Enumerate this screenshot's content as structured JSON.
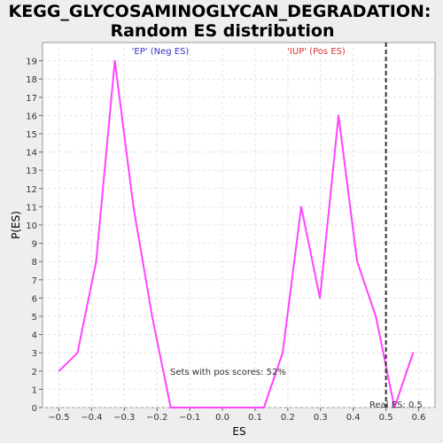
{
  "chart_data": {
    "type": "line",
    "title": [
      "KEGG_GLYCOSAMINOGLYCAN_DEGRADATION:",
      "Random ES distribution"
    ],
    "xlabel": "ES",
    "ylabel": "P(ES)",
    "xlim": [
      -0.55,
      0.65
    ],
    "ylim": [
      0,
      20
    ],
    "xticks": [
      -0.5,
      -0.4,
      -0.3,
      -0.2,
      -0.1,
      0.0,
      0.1,
      0.2,
      0.3,
      0.4,
      0.5,
      0.6
    ],
    "xtick_labels": [
      "−0.5",
      "−0.4",
      "−0.3",
      "−0.2",
      "−0.1",
      "0.0",
      "0.1",
      "0.2",
      "0.3",
      "0.4",
      "0.5",
      "0.6"
    ],
    "yticks": [
      0,
      1,
      2,
      3,
      4,
      5,
      6,
      7,
      8,
      9,
      10,
      11,
      12,
      13,
      14,
      15,
      16,
      17,
      18,
      19
    ],
    "grid": true,
    "series": [
      {
        "color": "#ff44ff",
        "x": [
          -0.5,
          -0.443,
          -0.386,
          -0.329,
          -0.272,
          -0.215,
          -0.158,
          -0.101,
          -0.044,
          0.013,
          0.07,
          0.127,
          0.184,
          0.241,
          0.298,
          0.355,
          0.412,
          0.469,
          0.526,
          0.583
        ],
        "y": [
          2,
          3,
          8,
          19,
          11,
          5,
          0,
          0,
          0,
          0,
          0,
          0,
          3,
          11,
          6,
          16,
          8,
          5,
          0,
          3
        ]
      }
    ],
    "real_es": {
      "x": 0.5,
      "color": "#333333"
    },
    "annotations": {
      "neg": {
        "text": "'EP' (Neg ES)",
        "color": "#3333cc"
      },
      "pos": {
        "text": "'IUP' (Pos ES)",
        "color": "#dd3333"
      },
      "pos_scores": "Sets with pos scores: 52%",
      "real_es_label": "Real ES: 0.5"
    }
  }
}
